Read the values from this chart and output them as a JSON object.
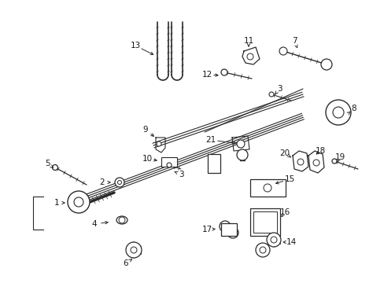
{
  "background": "#ffffff",
  "fig_width": 4.89,
  "fig_height": 3.6,
  "dpi": 100,
  "line_color": "#2a2a2a",
  "text_color": "#1a1a1a",
  "text_fontsize": 7.5
}
